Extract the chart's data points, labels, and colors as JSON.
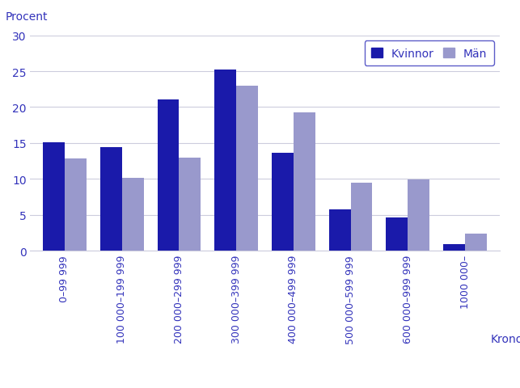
{
  "categories": [
    "0–99 999",
    "100 000–199 999",
    "200 000–299 999",
    "300 000–399 999",
    "400 000–499 999",
    "500 000–599 999",
    "600 000–999 999",
    "1000 000–"
  ],
  "kvinnor": [
    15.1,
    14.4,
    21.1,
    25.2,
    13.6,
    5.8,
    4.6,
    0.9
  ],
  "man": [
    12.9,
    10.1,
    13.0,
    23.0,
    19.3,
    9.5,
    9.9,
    2.4
  ],
  "color_kvinnor": "#1a1aaa",
  "color_man": "#9999cc",
  "ylabel": "Procent",
  "xlabel": "Kronor",
  "ylim": [
    0,
    30
  ],
  "yticks": [
    0,
    5,
    10,
    15,
    20,
    25,
    30
  ],
  "legend_labels": [
    "Kvinnor",
    "Män"
  ],
  "background_color": "#ffffff",
  "grid_color": "#ccccdd",
  "text_color": "#3333bb",
  "bar_width": 0.38
}
